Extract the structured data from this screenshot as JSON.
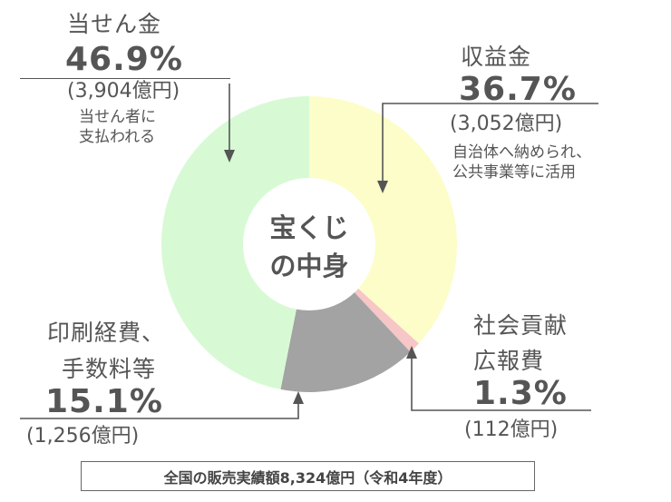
{
  "chart_data": {
    "type": "pie",
    "donut": true,
    "center_label": [
      "宝くじ",
      "の中身"
    ],
    "slices": [
      {
        "name": "収益金",
        "percent": 36.7,
        "amount": "(3,052億円)",
        "description": [
          "自治体へ納められ、",
          "公共事業等に活用"
        ],
        "color": "#fdfdc9"
      },
      {
        "name": "社会貢献広報費",
        "name_lines": [
          "社会貢献",
          "広報費"
        ],
        "percent": 1.3,
        "amount": "(112億円)",
        "color": "#f7c6c6"
      },
      {
        "name": "印刷経費、手数料等",
        "name_lines": [
          "印刷経費、",
          "手数料等"
        ],
        "percent": 15.1,
        "amount": "(1,256億円)",
        "color": "#a3a3a3"
      },
      {
        "name": "当せん金",
        "percent": 46.9,
        "amount": "(3,904億円)",
        "description": [
          "当せん者に",
          "支払われる"
        ],
        "color": "#d7fad5"
      }
    ],
    "percent_labels": [
      "36.7%",
      "1.3%",
      "15.1%",
      "46.9%"
    ],
    "footer": "全国の販売実績額8,324億円（令和4年度）"
  }
}
